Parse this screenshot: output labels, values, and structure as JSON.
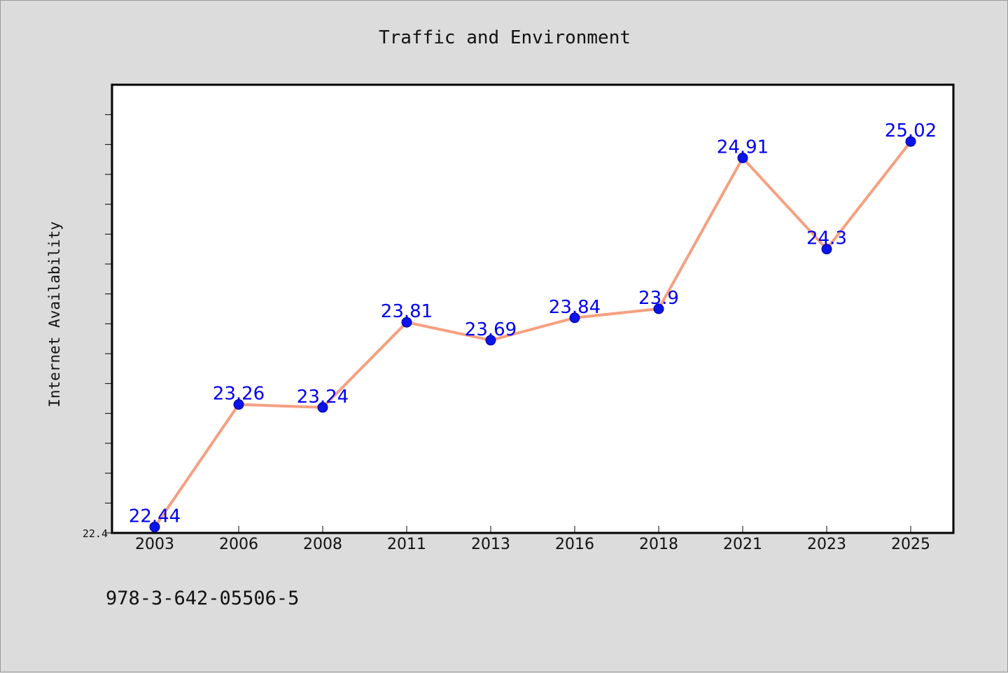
{
  "colors": {
    "background": "#dcdcdc",
    "plot_background": "#ffffff",
    "line": "#f5a080",
    "marker": "#0a14e6",
    "marker_edge": "#0000a0",
    "data_label": "#0000ee",
    "axis": "#000000"
  },
  "footer": {
    "isbn": "978-3-642-05506-5"
  },
  "chart_data": {
    "type": "line",
    "title": "Traffic and Environment",
    "xlabel": "",
    "ylabel": "Internet Availability",
    "categories": [
      "2003",
      "2006",
      "2008",
      "2011",
      "2013",
      "2016",
      "2018",
      "2021",
      "2023",
      "2025"
    ],
    "series": [
      {
        "values": [
          22.44,
          23.26,
          23.24,
          23.81,
          23.69,
          23.84,
          23.9,
          24.91,
          24.3,
          25.02
        ],
        "labels": [
          "22.44",
          "23.26",
          "23.24",
          "23.81",
          "23.69",
          "23.84",
          "23.9",
          "24.91",
          "24.3",
          "25.02"
        ]
      }
    ],
    "ylim": [
      22.4,
      25.4
    ],
    "y_tick_labels": [
      "22.4"
    ],
    "grid": false,
    "legend": "none"
  }
}
